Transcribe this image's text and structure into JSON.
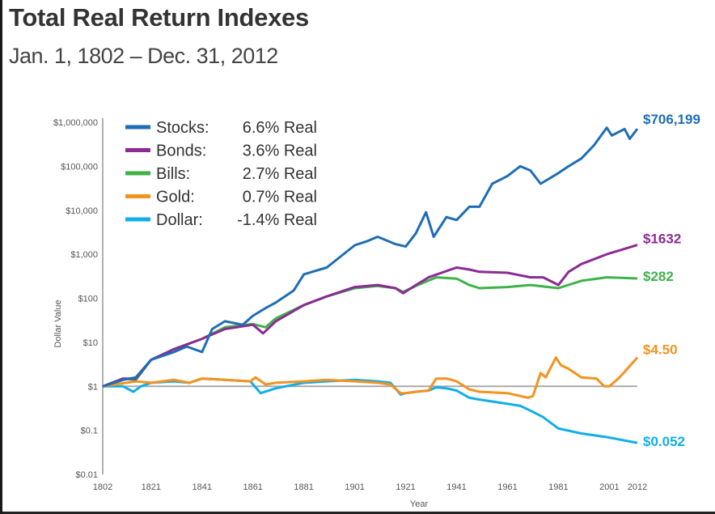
{
  "chart_data": {
    "type": "line",
    "title": "Total Real Return Indexes",
    "subtitle": "Jan. 1, 1802 – Dec. 31, 2012",
    "xlabel": "Year",
    "ylabel": "Dollar Value",
    "yscale": "log",
    "ylim": [
      0.01,
      1000000
    ],
    "xlim": [
      1802,
      2012
    ],
    "xticks": [
      1802,
      1821,
      1841,
      1861,
      1881,
      1901,
      1921,
      1941,
      1961,
      1981,
      2001,
      2012
    ],
    "yticks": [
      {
        "value": 1000000,
        "label": "$1,000,000"
      },
      {
        "value": 100000,
        "label": "$100,000"
      },
      {
        "value": 10000,
        "label": "$10,000"
      },
      {
        "value": 1000,
        "label": "$1,000"
      },
      {
        "value": 100,
        "label": "$100"
      },
      {
        "value": 10,
        "label": "$10"
      },
      {
        "value": 1,
        "label": "$1"
      },
      {
        "value": 0.1,
        "label": "$0.1"
      },
      {
        "value": 0.01,
        "label": "$0.01"
      }
    ],
    "reference_line": 1,
    "legend_position": "top-left",
    "grid": false,
    "series": [
      {
        "name": "Stocks:",
        "rate": "6.6% Real",
        "color": "#1f6db5",
        "end_label": "$706,199",
        "x": [
          1802,
          1810,
          1815,
          1821,
          1830,
          1835,
          1841,
          1845,
          1850,
          1857,
          1861,
          1866,
          1870,
          1877,
          1881,
          1890,
          1901,
          1906,
          1910,
          1917,
          1921,
          1925,
          1929,
          1932,
          1937,
          1941,
          1946,
          1950,
          1955,
          1961,
          1966,
          1970,
          1974,
          1981,
          1985,
          1990,
          1995,
          2000,
          2002,
          2007,
          2009,
          2012
        ],
        "y": [
          1,
          1.4,
          1.6,
          4,
          6,
          8,
          6,
          20,
          30,
          25,
          40,
          60,
          80,
          150,
          350,
          500,
          1600,
          2000,
          2500,
          1700,
          1500,
          3000,
          9000,
          2500,
          7000,
          6000,
          12000,
          12000,
          40000,
          60000,
          100000,
          80000,
          40000,
          70000,
          100000,
          150000,
          300000,
          750000,
          500000,
          700000,
          420000,
          706199
        ]
      },
      {
        "name": "Bonds:",
        "rate": "3.6% Real",
        "color": "#8b2b93",
        "end_label": "$1632",
        "x": [
          1802,
          1810,
          1815,
          1821,
          1830,
          1841,
          1850,
          1861,
          1865,
          1870,
          1881,
          1890,
          1901,
          1910,
          1917,
          1920,
          1925,
          1930,
          1941,
          1946,
          1950,
          1961,
          1970,
          1975,
          1981,
          1985,
          1990,
          2000,
          2012
        ],
        "y": [
          1,
          1.5,
          1.5,
          4,
          7,
          12,
          20,
          25,
          16,
          30,
          70,
          110,
          180,
          200,
          170,
          130,
          200,
          300,
          500,
          450,
          400,
          380,
          300,
          300,
          200,
          400,
          600,
          1000,
          1632
        ]
      },
      {
        "name": "Bills:",
        "rate": "2.7% Real",
        "color": "#3fb24a",
        "end_label": "$282",
        "x": [
          1802,
          1810,
          1815,
          1821,
          1830,
          1841,
          1850,
          1861,
          1866,
          1870,
          1881,
          1890,
          1901,
          1910,
          1917,
          1920,
          1925,
          1933,
          1941,
          1946,
          1950,
          1961,
          1970,
          1981,
          1990,
          2000,
          2012
        ],
        "y": [
          1,
          1.5,
          1.4,
          4,
          7,
          12,
          22,
          26,
          22,
          35,
          70,
          110,
          170,
          190,
          170,
          140,
          190,
          300,
          280,
          200,
          170,
          180,
          200,
          170,
          250,
          300,
          282
        ]
      },
      {
        "name": "Gold:",
        "rate": "0.7% Real",
        "color": "#f3931f",
        "end_label": "$4.50",
        "x": [
          1802,
          1815,
          1821,
          1830,
          1836,
          1841,
          1850,
          1860,
          1862,
          1866,
          1870,
          1881,
          1890,
          1901,
          1910,
          1915,
          1919,
          1921,
          1925,
          1930,
          1933,
          1937,
          1941,
          1946,
          1950,
          1961,
          1969,
          1971,
          1974,
          1976,
          1980,
          1982,
          1985,
          1990,
          1996,
          1999,
          2001,
          2005,
          2012
        ],
        "y": [
          1,
          1.3,
          1.2,
          1.4,
          1.2,
          1.5,
          1.4,
          1.3,
          1.6,
          1.1,
          1.2,
          1.3,
          1.4,
          1.3,
          1.2,
          1.1,
          0.7,
          0.7,
          0.75,
          0.8,
          1.5,
          1.5,
          1.3,
          0.85,
          0.75,
          0.7,
          0.55,
          0.6,
          2,
          1.6,
          4.5,
          3,
          2.5,
          1.6,
          1.5,
          1.0,
          1.0,
          1.6,
          4.5
        ]
      },
      {
        "name": "Dollar:",
        "rate": "-1.4% Real",
        "color": "#12aee8",
        "end_label": "$0.052",
        "x": [
          1802,
          1810,
          1814,
          1817,
          1821,
          1830,
          1836,
          1841,
          1850,
          1860,
          1864,
          1870,
          1881,
          1890,
          1901,
          1910,
          1915,
          1919,
          1921,
          1925,
          1930,
          1933,
          1937,
          1941,
          1946,
          1950,
          1961,
          1966,
          1970,
          1975,
          1981,
          1990,
          2000,
          2012
        ],
        "y": [
          1,
          1,
          0.75,
          1,
          1.2,
          1.3,
          1.2,
          1.5,
          1.4,
          1.3,
          0.7,
          0.9,
          1.2,
          1.3,
          1.4,
          1.3,
          1.2,
          0.65,
          0.7,
          0.75,
          0.8,
          0.95,
          0.9,
          0.8,
          0.55,
          0.5,
          0.4,
          0.36,
          0.28,
          0.2,
          0.11,
          0.085,
          0.07,
          0.052
        ]
      }
    ]
  }
}
